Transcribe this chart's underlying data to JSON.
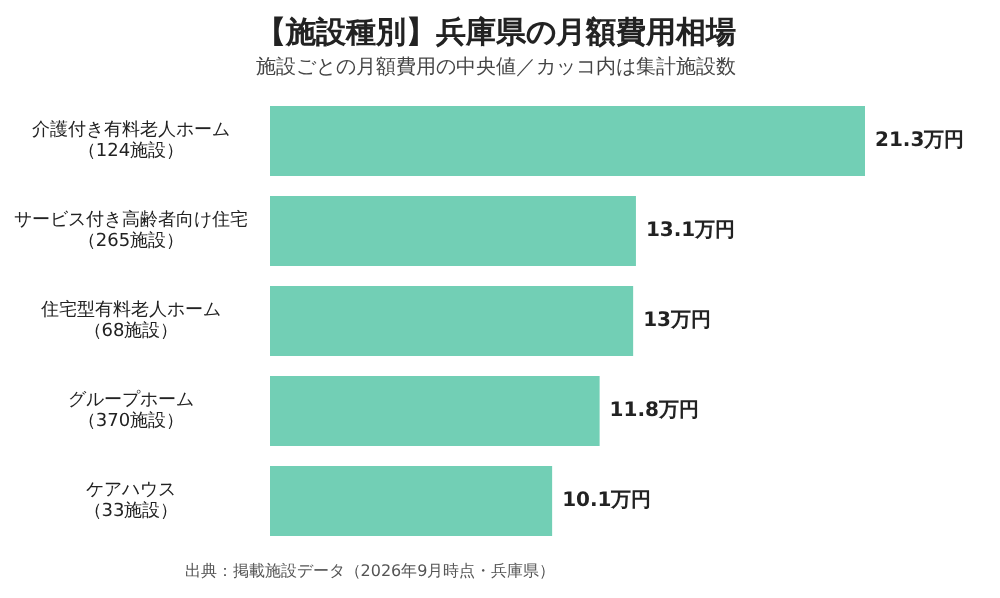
{
  "chart_data": {
    "type": "bar",
    "orientation": "horizontal",
    "title": "【施設種別】兵庫県の月額費用相場",
    "subtitle": "施設ごとの月額費用の中央値／カッコ内は集計施設数",
    "categories": [
      "介護付き有料老人ホーム（124施設）",
      "サービス付き高齢者向け住宅（265施設）",
      "住宅型有料老人ホーム（68施設）",
      "グループホーム（370施設）",
      "ケアハウス（33施設）"
    ],
    "values": [
      21.3,
      13.1,
      13,
      11.8,
      10.1
    ],
    "value_labels": [
      "21.3万円",
      "13.1万円",
      "13万円",
      "11.8万円",
      "10.1万円"
    ],
    "color": "#72cfb5",
    "legend": false,
    "annotations": [
      "出典：掲載施設データ（2026年9月時点・兵庫県）"
    ]
  }
}
